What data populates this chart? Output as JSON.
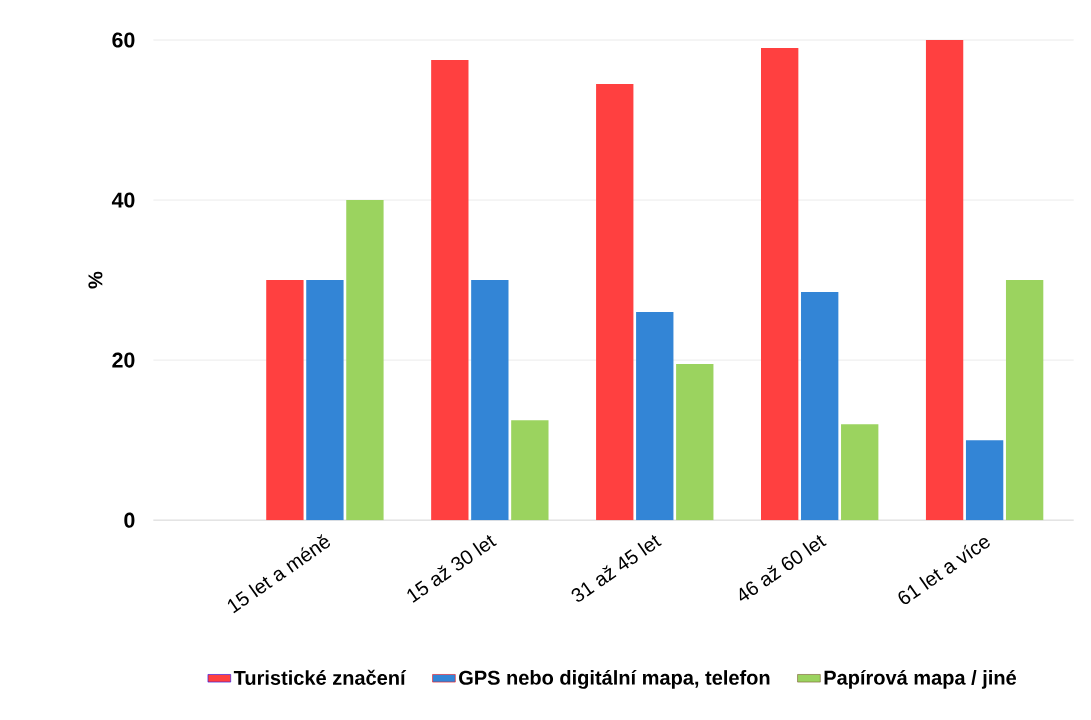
{
  "chart_data": {
    "type": "bar",
    "ylabel": "%",
    "categories": [
      "15 let a méně",
      "15 až 30 let",
      "31 až 45 let",
      "46 až 60 let",
      "61 let a více"
    ],
    "series": [
      {
        "name": "Turistické značení",
        "color": "#ff4040",
        "values": [
          30,
          57.5,
          54.5,
          59,
          60
        ]
      },
      {
        "name": "GPS nebo digitální mapa, telefon",
        "color": "#3385d6",
        "values": [
          30,
          30,
          26,
          28.5,
          10
        ]
      },
      {
        "name": "Papírová mapa / jiné",
        "color": "#9bd35f",
        "values": [
          40,
          12.5,
          19.5,
          12,
          30
        ]
      }
    ],
    "ylim": [
      0,
      60
    ],
    "yticks": [
      0,
      20,
      40,
      60
    ],
    "grid": "y",
    "legend": "bottom"
  }
}
